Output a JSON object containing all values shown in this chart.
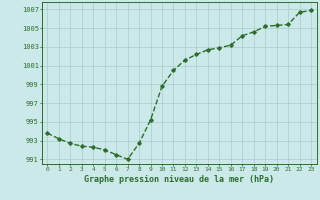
{
  "x": [
    0,
    1,
    2,
    3,
    4,
    5,
    6,
    7,
    8,
    9,
    10,
    11,
    12,
    13,
    14,
    15,
    16,
    17,
    18,
    19,
    20,
    21,
    22,
    23
  ],
  "y": [
    993.8,
    993.2,
    992.7,
    992.4,
    992.3,
    992.0,
    991.5,
    991.0,
    992.7,
    995.2,
    998.8,
    1000.5,
    1001.6,
    1002.2,
    1002.7,
    1002.9,
    1003.2,
    1004.2,
    1004.6,
    1005.2,
    1005.3,
    1005.4,
    1006.7,
    1006.9
  ],
  "line_color": "#2d6e2d",
  "marker": "D",
  "marker_size": 1.8,
  "line_width": 1.0,
  "bg_color": "#cce9e9",
  "grid_color": "#aacccc",
  "xlabel": "Graphe pression niveau de la mer (hPa)",
  "xlabel_fontsize": 6.0,
  "xlabel_color": "#2d6e2d",
  "ytick_labels": [
    "991",
    "993",
    "995",
    "997",
    "999",
    "1001",
    "1003",
    "1005",
    "1007"
  ],
  "ylim": [
    990.5,
    1007.8
  ],
  "xlim": [
    -0.5,
    23.5
  ],
  "yticks": [
    991,
    993,
    995,
    997,
    999,
    1001,
    1003,
    1005,
    1007
  ],
  "xtick_fontsize": 4.5,
  "ytick_fontsize": 5.0,
  "tick_color": "#2d6e2d"
}
